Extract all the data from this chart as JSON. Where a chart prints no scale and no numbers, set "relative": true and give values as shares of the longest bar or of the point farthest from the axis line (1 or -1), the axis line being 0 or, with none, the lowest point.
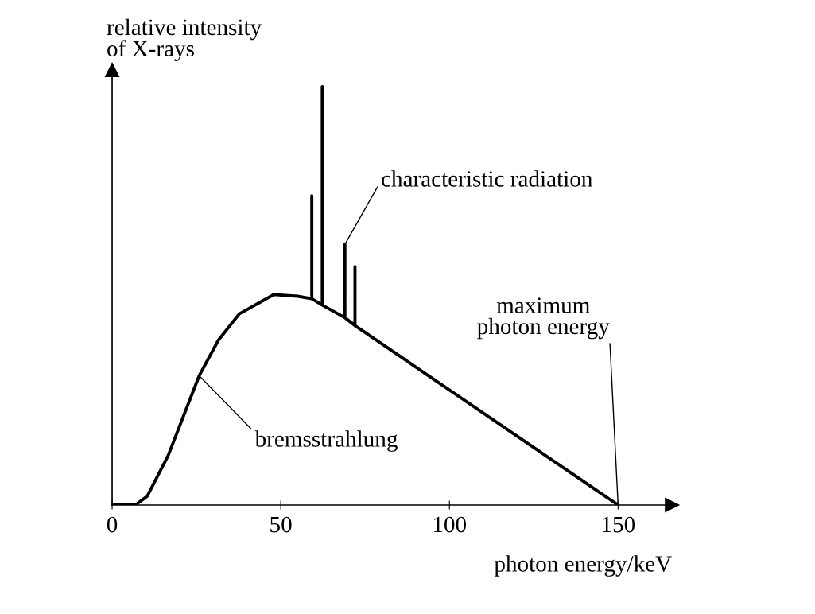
{
  "chart_data": {
    "type": "line",
    "relative": true,
    "xlabel": "photon energy/keV",
    "ylabel": "relative intensity\nof X-rays",
    "x": [
      0,
      6.9,
      10.4,
      16.6,
      25.8,
      31.5,
      37.7,
      47.9,
      55,
      59.2,
      59.2,
      59.2,
      62.3,
      62.3,
      62.3,
      69.0,
      69.0,
      69.0,
      72.0,
      72.0,
      72.0,
      150
    ],
    "series": [
      {
        "color": "#000000",
        "values": [
          0,
          0,
          0.021,
          0.118,
          0.309,
          0.394,
          0.457,
          0.503,
          0.499,
          0.493,
          0.739,
          0.493,
          0.478,
          1.0,
          0.478,
          0.448,
          0.623,
          0.448,
          0.429,
          0.57,
          0.429,
          0
        ]
      }
    ],
    "xlim": [
      0,
      166
    ],
    "xticks": [
      0,
      50,
      100,
      150
    ],
    "tick_labels": "x",
    "grid": false,
    "annotations": [
      {
        "text": "characteristic radiation",
        "x": 69.0,
        "y": 0.623
      },
      {
        "text": "bremsstrahlung",
        "x": 25.8,
        "y": 0.309
      },
      {
        "text": "maximum\nphoton energy",
        "x": 150,
        "y": 0
      }
    ]
  }
}
